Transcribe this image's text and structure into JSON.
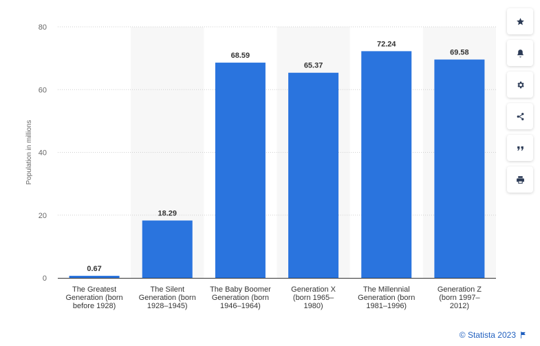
{
  "chart_data": {
    "type": "bar",
    "categories": [
      [
        "The Greatest",
        "Generation (born",
        "before 1928)"
      ],
      [
        "The Silent",
        "Generation (born",
        "1928–1945)"
      ],
      [
        "The Baby Boomer",
        "Generation (born",
        "1946–1964)"
      ],
      [
        "Generation X",
        "(born 1965–",
        "1980)"
      ],
      [
        "The Millennial",
        "Generation (born",
        "1981–1996)"
      ],
      [
        "Generation Z",
        "(born 1997–",
        "2012)"
      ]
    ],
    "values": [
      0.67,
      18.29,
      68.59,
      65.37,
      72.24,
      69.58
    ],
    "value_labels": [
      "0.67",
      "18.29",
      "68.59",
      "65.37",
      "72.24",
      "69.58"
    ],
    "ylabel": "Population in millions",
    "ylim": [
      0,
      80
    ],
    "yticks": [
      0,
      20,
      40,
      60,
      80
    ],
    "grid": true,
    "bar_color": "#2a74de",
    "alt_band_color": "#f7f7f7"
  },
  "toolbar": [
    {
      "name": "favorite-button",
      "icon": "star-icon"
    },
    {
      "name": "notification-button",
      "icon": "bell-icon"
    },
    {
      "name": "settings-button",
      "icon": "gear-icon"
    },
    {
      "name": "share-button",
      "icon": "share-icon"
    },
    {
      "name": "cite-button",
      "icon": "quote-icon"
    },
    {
      "name": "print-button",
      "icon": "printer-icon"
    }
  ],
  "credit": {
    "text": "© Statista 2023",
    "icon": "flag-icon"
  }
}
